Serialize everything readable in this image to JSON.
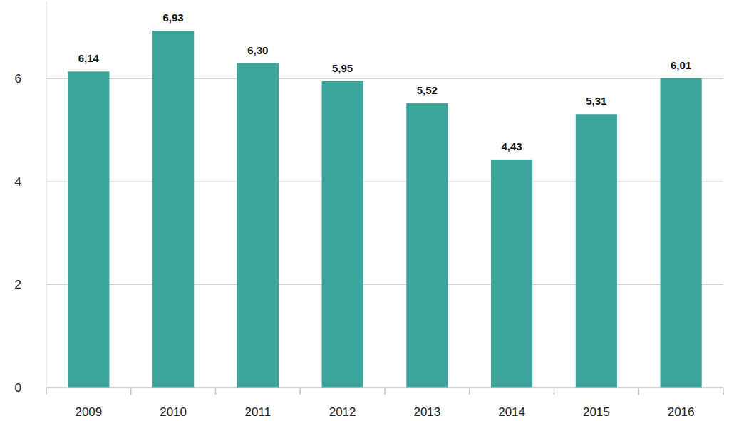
{
  "chart_data": {
    "type": "bar",
    "categories": [
      "2009",
      "2010",
      "2011",
      "2012",
      "2013",
      "2014",
      "2015",
      "2016"
    ],
    "values": [
      6.14,
      6.93,
      6.3,
      5.95,
      5.52,
      4.43,
      5.31,
      6.01
    ],
    "value_labels": [
      "6,14",
      "6,93",
      "6,30",
      "5,95",
      "5,52",
      "4,43",
      "5,31",
      "6,01"
    ],
    "color": "#3ba59b",
    "ylim": [
      0,
      7.5
    ],
    "yticks": [
      0,
      2,
      4,
      6
    ],
    "grid": true,
    "data_labels": true
  }
}
